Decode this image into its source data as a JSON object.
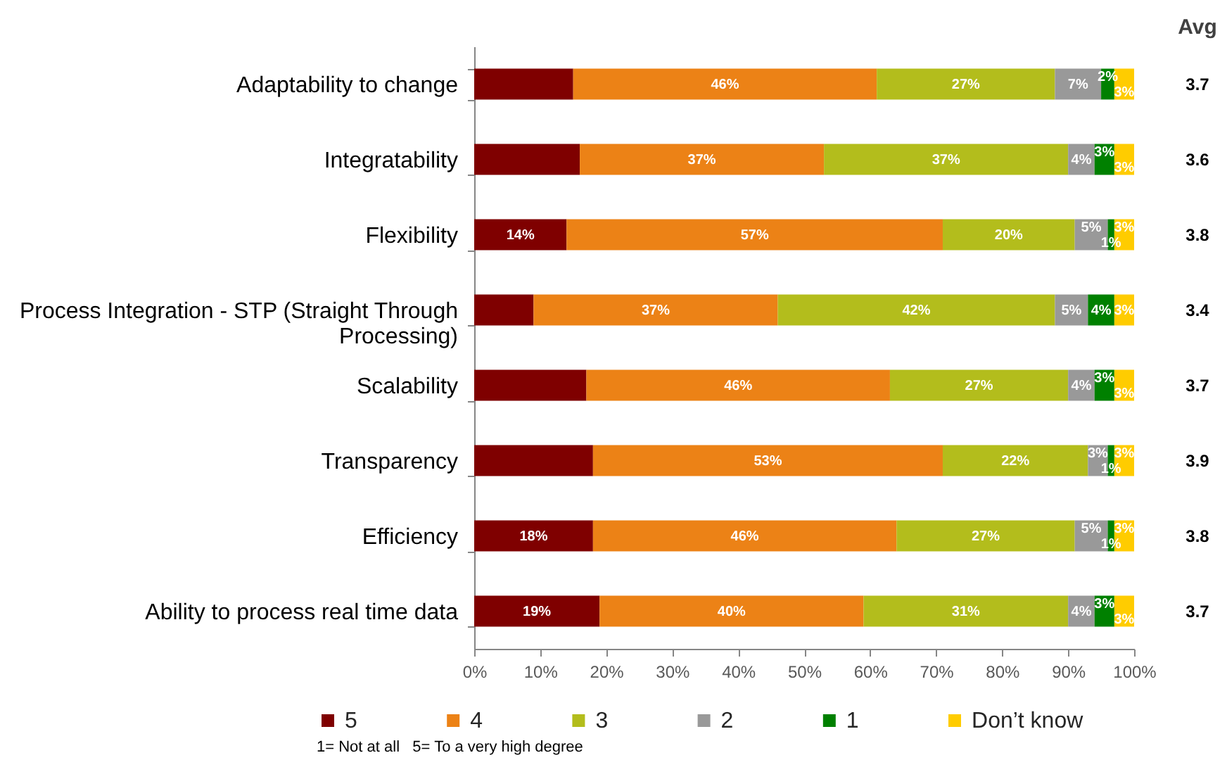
{
  "chart_data": {
    "type": "bar",
    "orientation": "horizontal",
    "stacked": true,
    "categories": [
      "Adaptability to change",
      "Integratability",
      "Flexibility",
      "Process Integration - STP (Straight Through Processing)",
      "Scalability",
      "Transparency",
      "Efficiency",
      "Ability to process real time data"
    ],
    "series": [
      {
        "name": "5",
        "color": "#7f0000",
        "values": [
          15,
          16,
          14,
          9,
          17,
          18,
          18,
          19
        ],
        "value_labels": [
          null,
          null,
          "14%",
          null,
          null,
          null,
          "18%",
          "19%"
        ]
      },
      {
        "name": "4",
        "color": "#ec8216",
        "values": [
          46,
          37,
          57,
          37,
          46,
          53,
          46,
          40
        ],
        "value_labels": [
          "46%",
          "37%",
          "57%",
          "37%",
          "46%",
          "53%",
          "46%",
          "40%"
        ]
      },
      {
        "name": "3",
        "color": "#b3bd1c",
        "values": [
          27,
          37,
          20,
          42,
          27,
          22,
          27,
          31
        ],
        "value_labels": [
          "27%",
          "37%",
          "20%",
          "42%",
          "27%",
          "22%",
          "27%",
          "31%"
        ]
      },
      {
        "name": "2",
        "color": "#999999",
        "values": [
          7,
          4,
          5,
          5,
          4,
          3,
          5,
          4
        ],
        "value_labels": [
          "7%",
          "4%",
          "5%",
          "5%",
          "4%",
          "3%",
          "5%",
          "4%"
        ]
      },
      {
        "name": "1",
        "color": "#008000",
        "values": [
          2,
          3,
          1,
          4,
          3,
          1,
          1,
          3
        ],
        "value_labels": [
          "2%",
          "3%",
          "1%",
          "4%",
          "3%",
          "1%",
          "1%",
          "3%"
        ]
      },
      {
        "name": "Don’t know",
        "color": "#ffcc00",
        "values": [
          3,
          3,
          3,
          3,
          3,
          3,
          3,
          3
        ],
        "value_labels": [
          "3%",
          "3%",
          "3%",
          "3%",
          "3%",
          "3%",
          "3%",
          "3%"
        ]
      }
    ],
    "xlim": [
      0,
      100
    ],
    "xticks": [
      {
        "value": 0,
        "label": "0%"
      },
      {
        "value": 10,
        "label": "10%"
      },
      {
        "value": 20,
        "label": "20%"
      },
      {
        "value": 30,
        "label": "30%"
      },
      {
        "value": 40,
        "label": "40%"
      },
      {
        "value": 50,
        "label": "50%"
      },
      {
        "value": 60,
        "label": "60%"
      },
      {
        "value": 70,
        "label": "70%"
      },
      {
        "value": 80,
        "label": "80%"
      },
      {
        "value": 90,
        "label": "90%"
      },
      {
        "value": 100,
        "label": "100%"
      }
    ],
    "legend": "bottom",
    "annotations": [
      "Avg",
      "3.7",
      "3.6",
      "3.8",
      "3.4",
      "3.7",
      "3.9",
      "3.8",
      "3.7",
      "1= Not at all   5= To a very high degree"
    ]
  }
}
